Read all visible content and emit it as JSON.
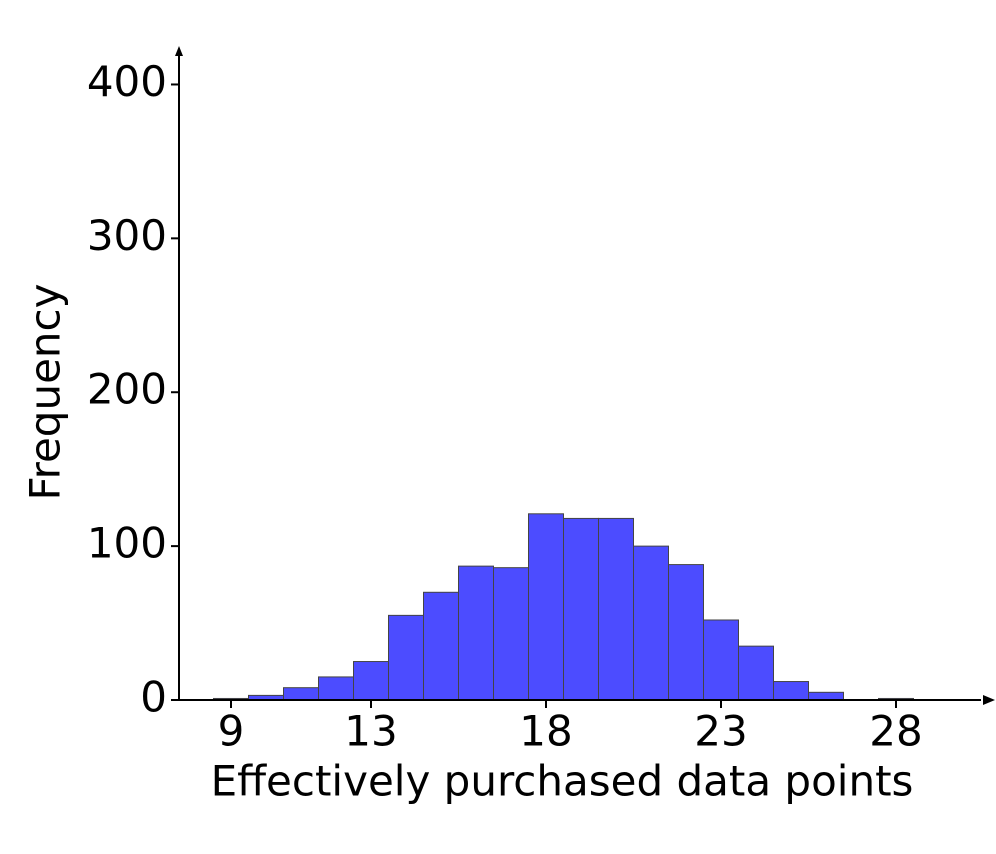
{
  "chart_data": {
    "type": "histogram",
    "x_label": "Effectively purchased data points",
    "y_label": "Frequency",
    "bins": [
      8.5,
      9.5,
      10.5,
      11.5,
      12.5,
      13.5,
      14.5,
      15.5,
      16.5,
      17.5,
      18.5,
      19.5,
      20.5,
      21.5,
      22.5,
      23.5,
      24.5,
      25.5,
      26.5,
      27.5,
      28.5
    ],
    "values": [
      1,
      3,
      8,
      15,
      25,
      55,
      70,
      87,
      86,
      121,
      118,
      118,
      100,
      88,
      52,
      35,
      12,
      5,
      0,
      1
    ],
    "color": "#4c4cff",
    "xlim": [
      7.4,
      30.6
    ],
    "xticks": [
      9,
      13,
      18,
      23,
      28
    ],
    "ylim": [
      0,
      425
    ],
    "yticks": [
      0,
      100,
      200,
      300,
      400
    ]
  }
}
